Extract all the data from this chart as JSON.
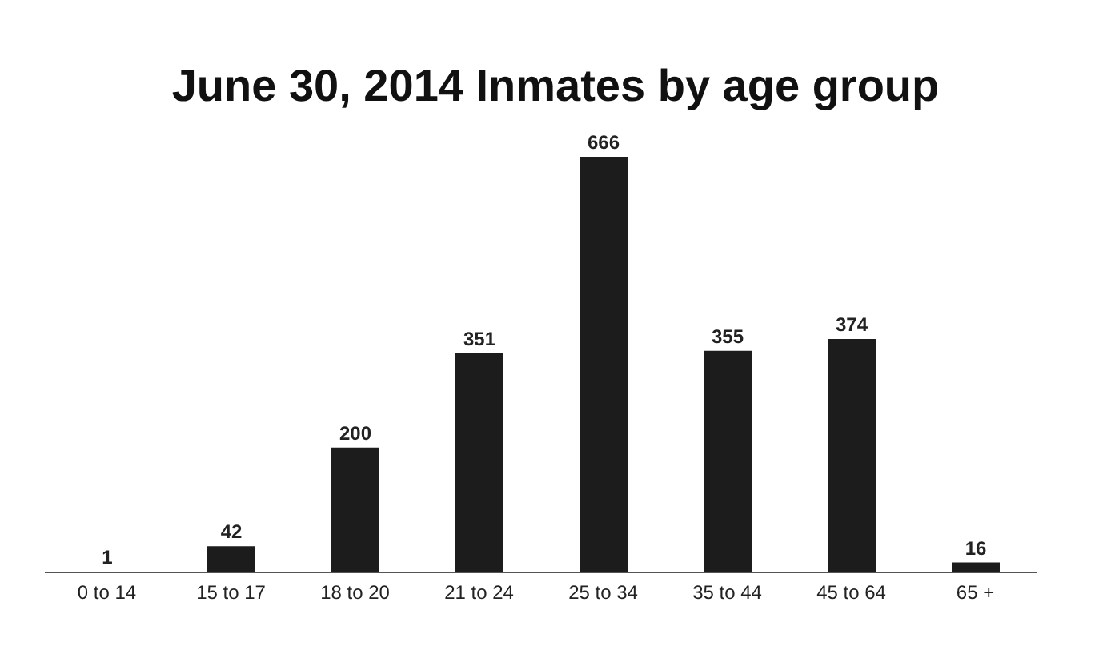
{
  "chart_data": {
    "type": "bar",
    "title": "June 30, 2014 Inmates by age group",
    "categories": [
      "0 to 14",
      "15 to 17",
      "18 to 20",
      "21 to 24",
      "25 to 34",
      "35 to 44",
      "45 to 64",
      "65 +"
    ],
    "values": [
      1,
      42,
      200,
      351,
      666,
      355,
      374,
      16
    ],
    "color": "#1c1c1c",
    "data_labels": true,
    "grid": false
  }
}
